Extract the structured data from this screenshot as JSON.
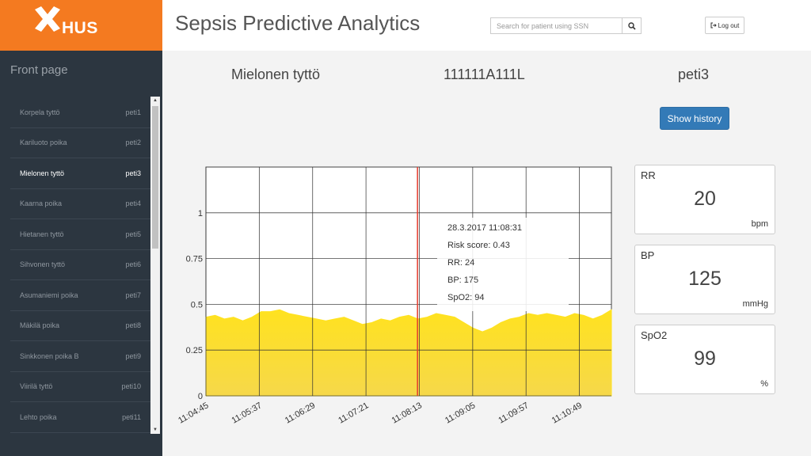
{
  "brand": {
    "logo_text": "HUS",
    "color": "#f47a20"
  },
  "header": {
    "title": "Sepsis Predictive Analytics",
    "search_placeholder": "Search for patient using SSN",
    "logout_label": "Log out"
  },
  "sidebar": {
    "front_page": "Front page",
    "patients": [
      {
        "name": "Korpela tyttö",
        "bed": "peti1"
      },
      {
        "name": "Kariluoto poika",
        "bed": "peti2"
      },
      {
        "name": "Mielonen tyttö",
        "bed": "peti3",
        "active": true
      },
      {
        "name": "Kaarna poika",
        "bed": "peti4"
      },
      {
        "name": "Hietanen tyttö",
        "bed": "peti5"
      },
      {
        "name": "Sihvonen tyttö",
        "bed": "peti6"
      },
      {
        "name": "Asumaniemi poika",
        "bed": "peti7"
      },
      {
        "name": "Mäkilä poika",
        "bed": "peti8"
      },
      {
        "name": "Sinkkonen poika B",
        "bed": "peti9"
      },
      {
        "name": "Viirilä tyttö",
        "bed": "peti10"
      },
      {
        "name": "Lehto poika",
        "bed": "peti11"
      }
    ]
  },
  "patient": {
    "name": "Mielonen tyttö",
    "ssn": "111111A111L",
    "bed": "peti3"
  },
  "history_button": "Show history",
  "tooltip": {
    "timestamp": "28.3.2017 11:08:31",
    "risk": "Risk score: 0.43",
    "rr": "RR: 24",
    "bp": "BP: 175",
    "spo2": "SpO2: 94"
  },
  "vitals": [
    {
      "label": "RR",
      "value": "20",
      "unit": "bpm"
    },
    {
      "label": "BP",
      "value": "125",
      "unit": "mmHg"
    },
    {
      "label": "SpO2",
      "value": "99",
      "unit": "%"
    }
  ],
  "chart_data": {
    "type": "area",
    "x_ticks": [
      "11:04:45",
      "11:05:37",
      "11:06:29",
      "11:07:21",
      "11:08:13",
      "11:09:05",
      "11:09:57",
      "11:10:49"
    ],
    "y_ticks": [
      "0",
      "0.25",
      "0.5",
      "0.75",
      "1"
    ],
    "ylim": [
      0,
      1.25
    ],
    "fill_color": "#ffe21f",
    "cursor_color": "#e53b2c",
    "cursor_position": 4.5,
    "values": [
      0.43,
      0.44,
      0.42,
      0.43,
      0.41,
      0.43,
      0.46,
      0.46,
      0.47,
      0.45,
      0.44,
      0.43,
      0.42,
      0.41,
      0.42,
      0.43,
      0.41,
      0.39,
      0.4,
      0.42,
      0.41,
      0.43,
      0.44,
      0.42,
      0.43,
      0.45,
      0.44,
      0.43,
      0.4,
      0.37,
      0.35,
      0.37,
      0.4,
      0.42,
      0.43,
      0.45,
      0.44,
      0.45,
      0.44,
      0.43,
      0.45,
      0.44,
      0.42,
      0.44,
      0.47
    ],
    "grid": true
  }
}
